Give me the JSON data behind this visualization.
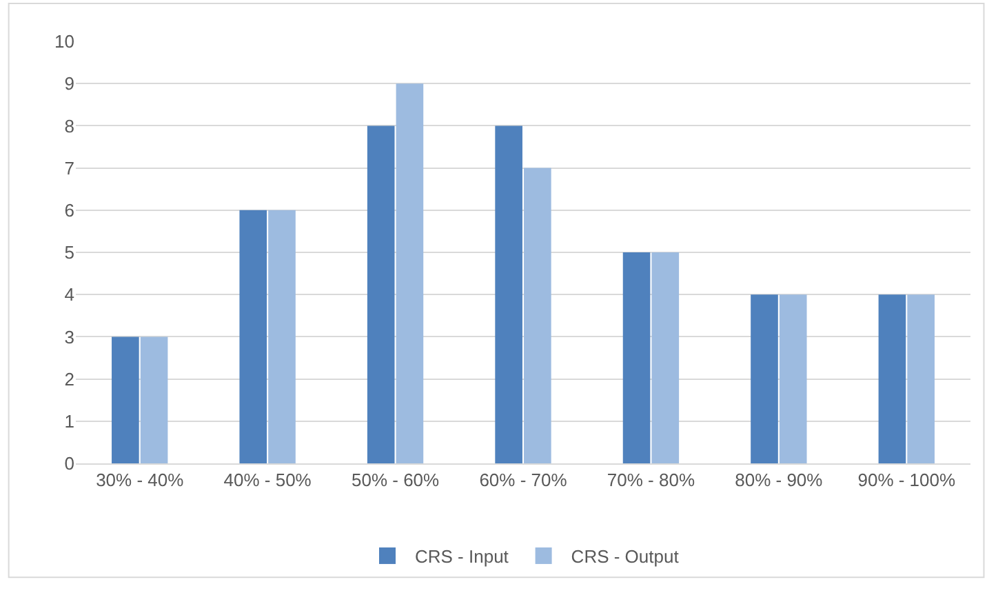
{
  "chart_data": {
    "type": "bar",
    "categories": [
      "30% - 40%",
      "40% - 50%",
      "50% - 60%",
      "60% - 70%",
      "70% - 80%",
      "80% - 90%",
      "90% - 100%"
    ],
    "series": [
      {
        "name": "CRS - Input",
        "color": "#4f81bd",
        "values": [
          3,
          6,
          8,
          8,
          5,
          4,
          4
        ]
      },
      {
        "name": "CRS - Output",
        "color": "#9dbbe0",
        "values": [
          3,
          6,
          9,
          7,
          5,
          4,
          4
        ]
      }
    ],
    "ylim": [
      0,
      10
    ],
    "yticks": [
      0,
      1,
      2,
      3,
      4,
      5,
      6,
      7,
      8,
      9,
      10
    ],
    "grid": "y",
    "legend": "bottom"
  }
}
